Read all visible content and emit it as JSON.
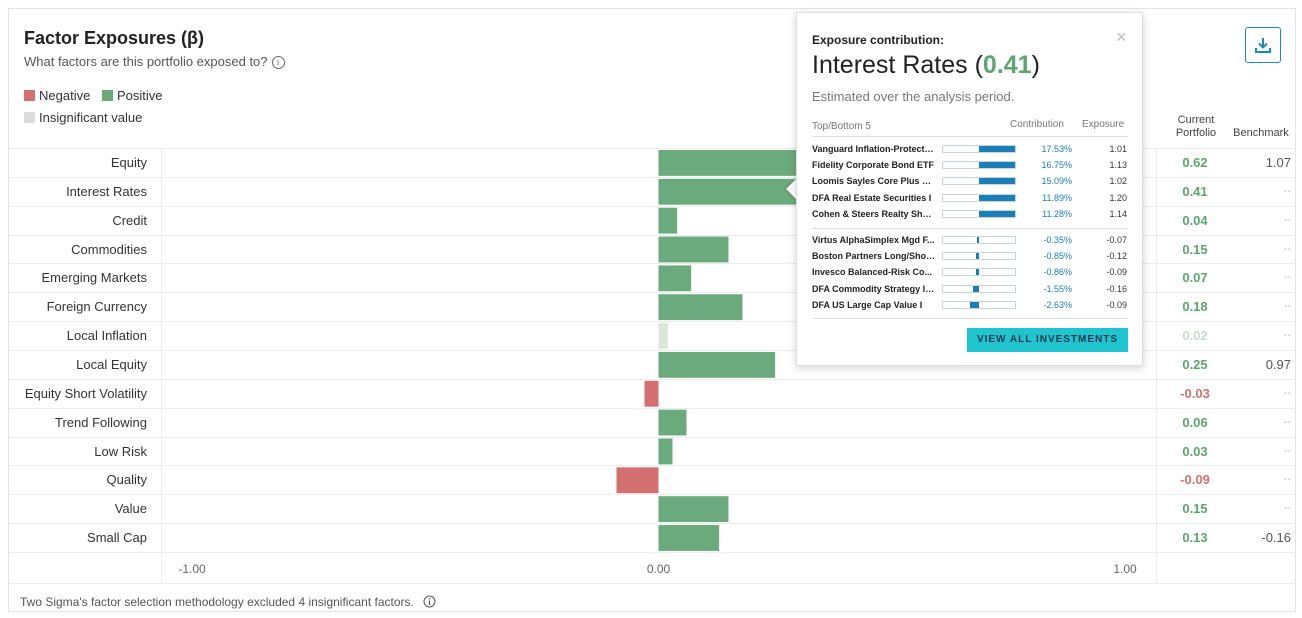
{
  "header": {
    "title": "Factor Exposures (β)",
    "subtitle": "What factors are this portfolio exposed to?",
    "info_icon": "i"
  },
  "legend": {
    "negative": "Negative",
    "positive": "Positive",
    "insignificant": "Insignificant value",
    "colors": {
      "negative": "#d4706f",
      "positive": "#6aaa7d",
      "insignificant": "#dde5df"
    }
  },
  "columns": {
    "current_line1": "Current",
    "current_line2": "Portfolio",
    "benchmark": "Benchmark"
  },
  "chart_data": {
    "type": "bar",
    "orientation": "horizontal",
    "xlim": [
      -1.0,
      1.0
    ],
    "ticks": [
      "-1.00",
      "0.00",
      "1.00"
    ],
    "tick_values": [
      -1.0,
      0.0,
      1.0
    ],
    "categories": [
      "Equity",
      "Interest Rates",
      "Credit",
      "Commodities",
      "Emerging Markets",
      "Foreign Currency",
      "Local Inflation",
      "Local Equity",
      "Equity Short Volatility",
      "Trend Following",
      "Low Risk",
      "Quality",
      "Value",
      "Small Cap"
    ],
    "values": [
      0.62,
      0.41,
      0.04,
      0.15,
      0.07,
      0.18,
      0.02,
      0.25,
      -0.03,
      0.06,
      0.03,
      -0.09,
      0.15,
      0.13
    ],
    "labels": [
      "0.62",
      "0.41",
      "0.04",
      "0.15",
      "0.07",
      "0.18",
      "0.02",
      "0.25",
      "-0.03",
      "0.06",
      "0.03",
      "-0.09",
      "0.15",
      "0.13"
    ],
    "significance": [
      "positive",
      "positive",
      "positive",
      "positive",
      "positive",
      "positive",
      "insignificant",
      "positive",
      "negative",
      "positive",
      "positive",
      "negative",
      "positive",
      "positive"
    ],
    "benchmark": [
      "1.07",
      "--",
      "--",
      "--",
      "--",
      "--",
      "--",
      "0.97",
      "--",
      "--",
      "--",
      "--",
      "--",
      "-0.16"
    ]
  },
  "footnote": "Two Sigma's factor selection methodology excluded 4 insignificant factors.",
  "download_icon": "download-icon",
  "popup": {
    "heading": "Exposure contribution:",
    "factor": "Interest Rates",
    "value": "0.41",
    "open_paren": "(",
    "close_paren": ")",
    "note": "Estimated over the analysis period.",
    "close": "×",
    "col_top_bottom": "Top/Bottom 5",
    "col_contribution": "Contribution",
    "col_exposure": "Exposure",
    "top": [
      {
        "name": "Vanguard Inflation-Protecte...",
        "contribution": 17.53,
        "contribution_label": "17.53%",
        "exposure": "1.01"
      },
      {
        "name": "Fidelity Corporate Bond ETF",
        "contribution": 16.75,
        "contribution_label": "16.75%",
        "exposure": "1.13"
      },
      {
        "name": "Loomis Sayles Core Plus B...",
        "contribution": 15.09,
        "contribution_label": "15.09%",
        "exposure": "1.02"
      },
      {
        "name": "DFA Real Estate Securities I",
        "contribution": 11.89,
        "contribution_label": "11.89%",
        "exposure": "1.20"
      },
      {
        "name": "Cohen & Steers Realty Shar...",
        "contribution": 11.28,
        "contribution_label": "11.28%",
        "exposure": "1.14"
      }
    ],
    "bottom": [
      {
        "name": "Virtus AlphaSimplex Mgd F...",
        "contribution": -0.35,
        "contribution_label": "-0.35%",
        "exposure": "-0.07"
      },
      {
        "name": "Boston Partners Long/Shor...",
        "contribution": -0.85,
        "contribution_label": "-0.85%",
        "exposure": "-0.12"
      },
      {
        "name": "Invesco Balanced-Risk Co...",
        "contribution": -0.86,
        "contribution_label": "-0.86%",
        "exposure": "-0.09"
      },
      {
        "name": "DFA Commodity Strategy In...",
        "contribution": -1.55,
        "contribution_label": "-1.55%",
        "exposure": "-0.16"
      },
      {
        "name": "DFA US Large Cap Value I",
        "contribution": -2.63,
        "contribution_label": "-2.63%",
        "exposure": "-0.09"
      }
    ],
    "button": "VIEW ALL INVESTMENTS"
  }
}
